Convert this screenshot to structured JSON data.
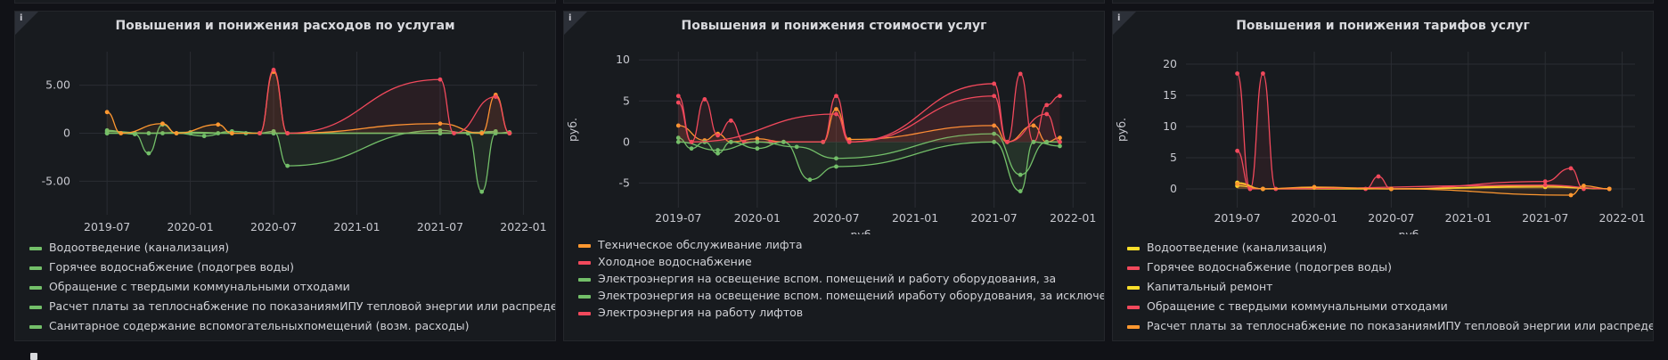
{
  "panels": [
    {
      "title": "Повышения и понижения расходов по услугам",
      "info_icon": "info-icon",
      "y_unit": "",
      "x_unit": "",
      "chart_data": {
        "type": "line",
        "title": "Повышения и понижения расходов по услугам",
        "xlabel": "",
        "ylabel": "",
        "x_range": [
          "2019-05",
          "2022-02"
        ],
        "ylim": [
          -8.5,
          8.5
        ],
        "y_ticks": [
          5,
          0,
          -5
        ],
        "y_tick_labels": [
          "5.00",
          "0",
          "-5.00"
        ],
        "x_ticks": [
          "2019-07",
          "2020-01",
          "2020-07",
          "2021-01",
          "2021-07",
          "2022-01"
        ],
        "grid": true,
        "legend_position": "bottom",
        "series": [
          {
            "name": "Водоотведение (канализация)",
            "color": "#73bf69",
            "points": [
              [
                "2019-07",
                0
              ],
              [
                "2019-09",
                0
              ],
              [
                "2019-11",
                0
              ],
              [
                "2020-01",
                0
              ],
              [
                "2020-03",
                0
              ],
              [
                "2020-05",
                0
              ],
              [
                "2020-07",
                0
              ],
              [
                "2021-07",
                0
              ],
              [
                "2021-09",
                0
              ],
              [
                "2021-11",
                0.2
              ]
            ]
          },
          {
            "name": "Горячее водоснабжение (подогрев воды)",
            "color": "#73bf69",
            "points": [
              [
                "2019-07",
                0.3
              ],
              [
                "2019-09",
                -0.1
              ],
              [
                "2019-10",
                -2.1
              ],
              [
                "2019-11",
                0.9
              ],
              [
                "2019-12",
                0
              ],
              [
                "2020-02",
                -0.3
              ],
              [
                "2020-04",
                0.2
              ],
              [
                "2020-06",
                0
              ],
              [
                "2020-07",
                0.2
              ],
              [
                "2020-08",
                -3.4
              ],
              [
                "2021-07",
                0.3
              ],
              [
                "2021-09",
                0
              ],
              [
                "2021-10",
                -6.1
              ],
              [
                "2021-11",
                0
              ],
              [
                "2021-12",
                0.1
              ]
            ]
          },
          {
            "name": "Обращение с твердыми коммунальными отходами",
            "color": "#73bf69",
            "points": [
              [
                "2019-07",
                0.2
              ],
              [
                "2019-10",
                0
              ],
              [
                "2020-01",
                0.1
              ],
              [
                "2020-04",
                0
              ],
              [
                "2020-07",
                0
              ],
              [
                "2021-07",
                0
              ],
              [
                "2021-10",
                0.1
              ],
              [
                "2021-12",
                0
              ]
            ]
          },
          {
            "name": "Расчет платы за теплоснабжение по показаниямИПУ тепловой энергии или распределителейтепловой энергии",
            "color": "#73bf69",
            "points": [
              [
                "2019-07",
                0
              ],
              [
                "2020-07",
                0
              ],
              [
                "2021-07",
                0
              ],
              [
                "2021-12",
                0
              ]
            ]
          },
          {
            "name": "Санитарное содержание вспомогательныхпомещений (возм. расходы)",
            "color": "#73bf69",
            "points": [
              [
                "2019-07",
                0
              ],
              [
                "2020-07",
                0
              ],
              [
                "2021-12",
                0
              ]
            ]
          },
          {
            "name": "",
            "color": "#ff9830",
            "points": [
              [
                "2019-07",
                2.2
              ],
              [
                "2019-08",
                0
              ],
              [
                "2019-11",
                1
              ],
              [
                "2019-12",
                0
              ],
              [
                "2020-03",
                0.9
              ],
              [
                "2020-04",
                0
              ],
              [
                "2020-06",
                0
              ],
              [
                "2020-07",
                6.4
              ],
              [
                "2020-08",
                0
              ],
              [
                "2021-07",
                1
              ],
              [
                "2021-10",
                0
              ],
              [
                "2021-11",
                4
              ],
              [
                "2021-12",
                0
              ]
            ]
          },
          {
            "name": "",
            "color": "#f2495c",
            "points": [
              [
                "2020-06",
                0
              ],
              [
                "2020-07",
                6.6
              ],
              [
                "2020-08",
                0
              ],
              [
                "2021-07",
                5.6
              ],
              [
                "2021-08",
                0
              ],
              [
                "2021-11",
                3.8
              ],
              [
                "2021-12",
                0
              ]
            ]
          }
        ]
      },
      "legend": [
        {
          "label": "Водоотведение (канализация)",
          "color": "#73bf69"
        },
        {
          "label": "Горячее водоснабжение (подогрев воды)",
          "color": "#73bf69"
        },
        {
          "label": "Обращение с твердыми коммунальными отходами",
          "color": "#73bf69"
        },
        {
          "label": "Расчет платы за теплоснабжение по показаниямИПУ тепловой энергии или распределителейтепловой энергии",
          "color": "#73bf69"
        },
        {
          "label": "Санитарное содержание вспомогательныхпомещений (возм. расходы)",
          "color": "#73bf69"
        }
      ]
    },
    {
      "title": "Повышения и понижения стоимости услуг",
      "info_icon": "info-icon",
      "y_unit": "руб.",
      "x_unit": "руб.",
      "chart_data": {
        "type": "line",
        "title": "Повышения и понижения стоимости услуг",
        "xlabel": "руб.",
        "ylabel": "руб.",
        "x_range": [
          "2019-04",
          "2022-02"
        ],
        "ylim": [
          -8,
          11
        ],
        "y_ticks": [
          10,
          5,
          0,
          -5
        ],
        "y_tick_labels": [
          "10",
          "5",
          "0",
          "-5"
        ],
        "x_ticks": [
          "2019-07",
          "2020-01",
          "2020-07",
          "2021-01",
          "2021-07",
          "2022-01"
        ],
        "grid": true,
        "legend_position": "bottom",
        "series": [
          {
            "name": "Техническое обслуживание лифта",
            "color": "#ff9830",
            "points": [
              [
                "2019-07",
                2
              ],
              [
                "2019-09",
                0.2
              ],
              [
                "2019-10",
                1
              ],
              [
                "2019-11",
                0
              ],
              [
                "2020-01",
                0.4
              ],
              [
                "2020-03",
                0
              ],
              [
                "2020-06",
                0
              ],
              [
                "2020-07",
                4
              ],
              [
                "2020-08",
                0.3
              ],
              [
                "2021-07",
                2
              ],
              [
                "2021-08",
                0
              ],
              [
                "2021-10",
                2
              ],
              [
                "2021-11",
                0
              ],
              [
                "2021-12",
                0.5
              ]
            ]
          },
          {
            "name": "Холодное водоснабжение",
            "color": "#f2495c",
            "points": [
              [
                "2019-07",
                5.6
              ],
              [
                "2019-08",
                0
              ],
              [
                "2019-09",
                5.2
              ],
              [
                "2019-10",
                0.8
              ],
              [
                "2019-11",
                2.6
              ],
              [
                "2019-12",
                0
              ],
              [
                "2020-02",
                0
              ],
              [
                "2020-06",
                0
              ],
              [
                "2020-07",
                5.6
              ],
              [
                "2020-08",
                0
              ],
              [
                "2021-07",
                7.1
              ],
              [
                "2021-08",
                0
              ],
              [
                "2021-09",
                8.3
              ],
              [
                "2021-10",
                0
              ],
              [
                "2021-11",
                4.5
              ],
              [
                "2021-12",
                5.6
              ]
            ]
          },
          {
            "name": "Электроэнергия на освещение вспом. помещений и работу оборудования, за",
            "color": "#73bf69",
            "points": [
              [
                "2019-07",
                0.5
              ],
              [
                "2019-08",
                -0.8
              ],
              [
                "2019-09",
                0
              ],
              [
                "2019-10",
                -1.4
              ],
              [
                "2019-11",
                0
              ],
              [
                "2020-01",
                -0.8
              ],
              [
                "2020-03",
                0
              ],
              [
                "2020-05",
                -4.6
              ],
              [
                "2020-07",
                -3
              ],
              [
                "2021-07",
                0
              ],
              [
                "2021-09",
                -6
              ],
              [
                "2021-10",
                0
              ],
              [
                "2021-12",
                -0.5
              ]
            ]
          },
          {
            "name": "Электроэнергия на освещение вспом. помещений иработу оборудования, за исключением лифт",
            "color": "#73bf69",
            "points": [
              [
                "2019-07",
                0
              ],
              [
                "2019-10",
                -1
              ],
              [
                "2020-01",
                0
              ],
              [
                "2020-04",
                -0.6
              ],
              [
                "2020-07",
                -2
              ],
              [
                "2021-07",
                1
              ],
              [
                "2021-09",
                -4
              ],
              [
                "2021-11",
                0
              ],
              [
                "2021-12",
                0
              ]
            ]
          },
          {
            "name": "Электроэнергия на работу лифтов",
            "color": "#f2495c",
            "points": [
              [
                "2019-07",
                4.8
              ],
              [
                "2019-08",
                0
              ],
              [
                "2020-07",
                3.4
              ],
              [
                "2020-08",
                0
              ],
              [
                "2021-07",
                5.6
              ],
              [
                "2021-08",
                0
              ],
              [
                "2021-11",
                3.4
              ],
              [
                "2021-12",
                0
              ]
            ]
          }
        ]
      },
      "legend": [
        {
          "label": "Техническое обслуживание лифта",
          "color": "#ff9830"
        },
        {
          "label": "Холодное водоснабжение",
          "color": "#f2495c"
        },
        {
          "label": "Электроэнергия на освещение вспом. помещений и работу оборудования, за",
          "color": "#73bf69"
        },
        {
          "label": "Электроэнергия на освещение вспом. помещений иработу оборудования, за исключением лифт",
          "color": "#73bf69"
        },
        {
          "label": "Электроэнергия на работу лифтов",
          "color": "#f2495c"
        }
      ]
    },
    {
      "title": "Повышения и понижения тарифов услуг",
      "info_icon": "info-icon",
      "y_unit": "руб.",
      "x_unit": "руб.",
      "chart_data": {
        "type": "line",
        "title": "Повышения и понижения тарифов услуг",
        "xlabel": "руб.",
        "ylabel": "руб.",
        "x_range": [
          "2019-03",
          "2022-02"
        ],
        "ylim": [
          -3,
          22
        ],
        "y_ticks": [
          20,
          15,
          10,
          5,
          0
        ],
        "y_tick_labels": [
          "20",
          "15",
          "10",
          "5",
          "0"
        ],
        "x_ticks": [
          "2019-07",
          "2020-01",
          "2020-07",
          "2021-01",
          "2021-07",
          "2022-01"
        ],
        "grid": true,
        "legend_position": "bottom",
        "series": [
          {
            "name": "Водоотведение (канализация)",
            "color": "#fade2a",
            "points": [
              [
                "2019-07",
                0.5
              ],
              [
                "2019-09",
                0
              ],
              [
                "2020-01",
                0.2
              ],
              [
                "2020-07",
                0
              ],
              [
                "2021-07",
                0.3
              ],
              [
                "2021-12",
                0
              ]
            ]
          },
          {
            "name": "Горячее водоснабжение (подогрев воды)",
            "color": "#f2495c",
            "points": [
              [
                "2019-07",
                18.5
              ],
              [
                "2019-08",
                0
              ],
              [
                "2019-09",
                18.5
              ],
              [
                "2019-10",
                0
              ],
              [
                "2020-05",
                0
              ],
              [
                "2020-06",
                2
              ],
              [
                "2020-07",
                0
              ],
              [
                "2021-07",
                1.2
              ],
              [
                "2021-09",
                3.3
              ],
              [
                "2021-10",
                0
              ]
            ]
          },
          {
            "name": "Капитальный ремонт",
            "color": "#fade2a",
            "points": [
              [
                "2019-07",
                1
              ],
              [
                "2019-09",
                0
              ],
              [
                "2020-07",
                0
              ],
              [
                "2021-07",
                0.5
              ],
              [
                "2021-12",
                0
              ]
            ]
          },
          {
            "name": "Обращение с твердыми коммунальными отходами",
            "color": "#f2495c",
            "points": [
              [
                "2019-07",
                6.1
              ],
              [
                "2019-08",
                0
              ],
              [
                "2021-07",
                0.6
              ],
              [
                "2021-12",
                0
              ]
            ]
          },
          {
            "name": "Расчет платы за теплоснабжение по показаниямИПУ тепловой энергии или распределителейтепловой энергии",
            "color": "#ff9830",
            "points": [
              [
                "2019-07",
                0.8
              ],
              [
                "2019-09",
                0
              ],
              [
                "2020-01",
                0.3
              ],
              [
                "2020-07",
                0
              ],
              [
                "2021-09",
                -1
              ],
              [
                "2021-10",
                0.5
              ],
              [
                "2021-12",
                0
              ]
            ]
          }
        ]
      },
      "legend": [
        {
          "label": "Водоотведение (канализация)",
          "color": "#fade2a"
        },
        {
          "label": "Горячее водоснабжение (подогрев воды)",
          "color": "#f2495c"
        },
        {
          "label": "Капитальный ремонт",
          "color": "#fade2a"
        },
        {
          "label": "Обращение с твердыми коммунальными отходами",
          "color": "#f2495c"
        },
        {
          "label": "Расчет платы за теплоснабжение по показаниямИПУ тепловой энергии или распределителейтепловой энергии",
          "color": "#ff9830"
        }
      ]
    }
  ]
}
